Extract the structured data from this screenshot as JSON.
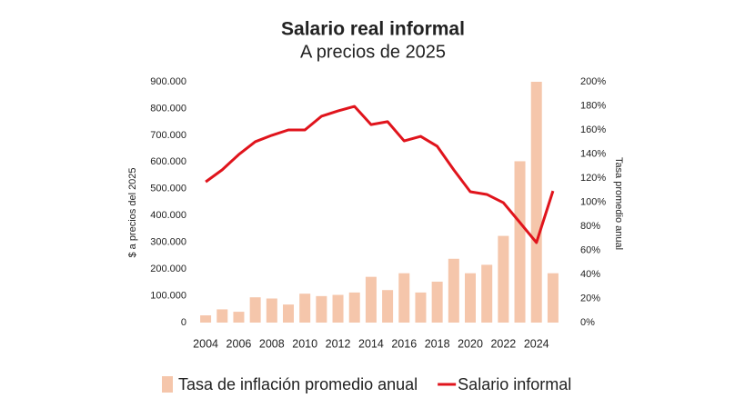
{
  "chart_data": {
    "type": "bar-line",
    "title": "Salario real informal",
    "subtitle": "A precios de 2025",
    "ylabel": "$ a precios del 2025",
    "y2label": "Tasa promedio anual",
    "categories": [
      "2004",
      null,
      "2006",
      null,
      "2008",
      null,
      "2010",
      null,
      "2012",
      null,
      "2014",
      null,
      "2016",
      null,
      "2018",
      null,
      "2020",
      null,
      "2022",
      null,
      "2024",
      null
    ],
    "series": [
      {
        "name": "Tasa de inflación promedio anual",
        "type": "bar",
        "axis": "y2",
        "color": "#f5c6ab",
        "values": [
          6,
          11,
          9,
          21,
          20,
          15,
          24,
          22,
          23,
          25,
          38,
          27,
          41,
          25,
          34,
          53,
          41,
          48,
          72,
          134,
          200,
          41
        ]
      },
      {
        "name": "Salario informal",
        "type": "line",
        "axis": "y",
        "color": "#e0141c",
        "values": [
          526000,
          571000,
          628000,
          676000,
          700000,
          720000,
          720000,
          771000,
          791000,
          808000,
          740000,
          751000,
          679000,
          696000,
          659000,
          571000,
          489000,
          479000,
          448000,
          374000,
          299000,
          492000
        ]
      }
    ],
    "ylim": [
      0,
      900000
    ],
    "yticks": [
      0,
      {
        "value": 100000,
        "label": "100.000"
      },
      {
        "value": 200000,
        "label": "200.000"
      },
      {
        "value": 300000,
        "label": "300.000"
      },
      {
        "value": 400000,
        "label": "400.000"
      },
      {
        "value": 500000,
        "label": "500.000"
      },
      {
        "value": 600000,
        "label": "600.000"
      },
      {
        "value": 700000,
        "label": "700.000"
      },
      {
        "value": 800000,
        "label": "800.000"
      },
      {
        "value": 900000,
        "label": "900.000"
      }
    ],
    "y2lim": [
      0,
      200
    ],
    "y2ticks": [
      {
        "value": 0,
        "label": "0%"
      },
      {
        "value": 20,
        "label": "20%"
      },
      {
        "value": 40,
        "label": "40%"
      },
      {
        "value": 60,
        "label": "60%"
      },
      {
        "value": 80,
        "label": "80%"
      },
      {
        "value": 100,
        "label": "100%"
      },
      {
        "value": 120,
        "label": "120%"
      },
      {
        "value": 140,
        "label": "140%"
      },
      {
        "value": 160,
        "label": "160%"
      },
      {
        "value": 180,
        "label": "180%"
      },
      {
        "value": 200,
        "label": "200%"
      }
    ],
    "grid": false
  }
}
